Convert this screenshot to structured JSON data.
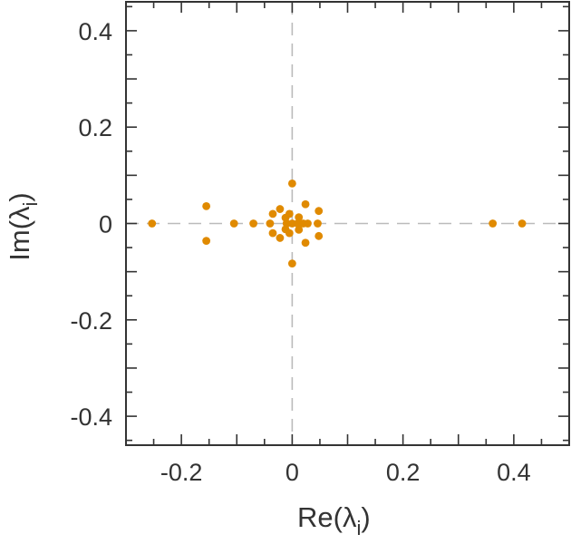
{
  "chart_data": {
    "type": "scatter",
    "xlabel": "Re(λ",
    "xlabel_sub": "i",
    "xlabel_close": ")",
    "ylabel": "Im(λ",
    "ylabel_sub": "i",
    "ylabel_close": ")",
    "xlim": [
      -0.3,
      0.5
    ],
    "ylim": [
      -0.46,
      0.46
    ],
    "x_ticks": [
      -0.2,
      0,
      0.2,
      0.4
    ],
    "x_tick_labels": [
      "-0.2",
      "0",
      "0.2",
      "0.4"
    ],
    "y_ticks": [
      0.4,
      0.2,
      0,
      -0.2,
      -0.4
    ],
    "y_tick_labels": [
      "0.4",
      "0.2",
      "0",
      "-0.2",
      "-0.4"
    ],
    "zero_lines": true,
    "grid": false,
    "legend": "none",
    "marker_color": "#e08a00",
    "points": [
      {
        "x": -0.253,
        "y": 0.0
      },
      {
        "x": -0.155,
        "y": 0.036
      },
      {
        "x": -0.155,
        "y": -0.036
      },
      {
        "x": -0.105,
        "y": 0.0
      },
      {
        "x": -0.07,
        "y": 0.0
      },
      {
        "x": 0.0,
        "y": 0.083
      },
      {
        "x": 0.0,
        "y": -0.083
      },
      {
        "x": -0.035,
        "y": 0.02
      },
      {
        "x": -0.035,
        "y": -0.02
      },
      {
        "x": -0.04,
        "y": 0.0
      },
      {
        "x": -0.022,
        "y": 0.03
      },
      {
        "x": -0.022,
        "y": -0.03
      },
      {
        "x": -0.012,
        "y": 0.012
      },
      {
        "x": -0.012,
        "y": -0.012
      },
      {
        "x": -0.01,
        "y": 0.0
      },
      {
        "x": 0.0,
        "y": 0.0
      },
      {
        "x": 0.01,
        "y": 0.0
      },
      {
        "x": 0.02,
        "y": 0.0
      },
      {
        "x": 0.028,
        "y": 0.0
      },
      {
        "x": 0.012,
        "y": 0.013
      },
      {
        "x": 0.012,
        "y": -0.013
      },
      {
        "x": -0.005,
        "y": 0.02
      },
      {
        "x": -0.005,
        "y": -0.02
      },
      {
        "x": 0.024,
        "y": 0.04
      },
      {
        "x": 0.024,
        "y": -0.04
      },
      {
        "x": 0.048,
        "y": 0.026
      },
      {
        "x": 0.048,
        "y": -0.026
      },
      {
        "x": 0.046,
        "y": 0.0
      },
      {
        "x": 0.362,
        "y": 0.0
      },
      {
        "x": 0.415,
        "y": 0.0
      }
    ]
  }
}
